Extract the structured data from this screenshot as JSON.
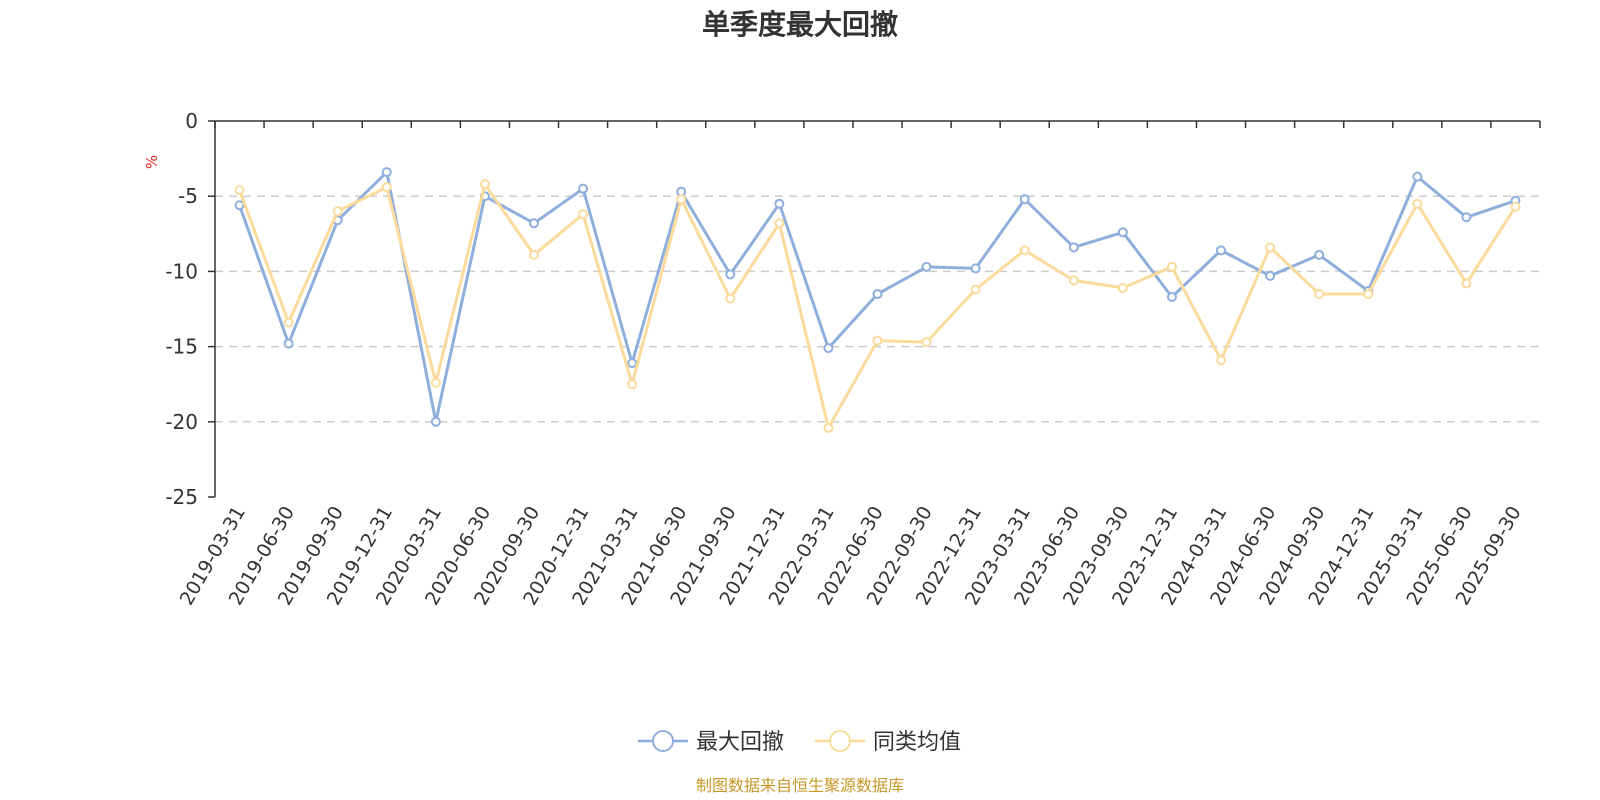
{
  "chart_data": {
    "type": "line",
    "title": "单季度最大回撤",
    "unit_label": "%",
    "ylim": [
      -25,
      0
    ],
    "yticks": [
      0,
      -5,
      -10,
      -15,
      -20,
      -25
    ],
    "grid": true,
    "legend_position": "bottom-center",
    "categories": [
      "2019-03-31",
      "2019-06-30",
      "2019-09-30",
      "2019-12-31",
      "2020-03-31",
      "2020-06-30",
      "2020-09-30",
      "2020-12-31",
      "2021-03-31",
      "2021-06-30",
      "2021-09-30",
      "2021-12-31",
      "2022-03-31",
      "2022-06-30",
      "2022-09-30",
      "2022-12-31",
      "2023-03-31",
      "2023-06-30",
      "2023-09-30",
      "2023-12-31",
      "2024-03-31",
      "2024-06-30",
      "2024-09-30",
      "2024-12-31",
      "2025-03-31",
      "2025-06-30",
      "2025-09-30"
    ],
    "series": [
      {
        "name": "最大回撤",
        "color": "#8eaedb",
        "values": [
          -5.6,
          -14.8,
          -6.6,
          -3.4,
          -20.0,
          -5.0,
          -6.8,
          -4.5,
          -16.1,
          -4.7,
          -10.2,
          -5.5,
          -15.1,
          -11.5,
          -9.7,
          -9.8,
          -5.2,
          -8.4,
          -7.4,
          -11.7,
          -8.6,
          -10.3,
          -8.9,
          -11.3,
          -3.7,
          -6.4,
          -5.3
        ]
      },
      {
        "name": "同类均值",
        "color": "#fbdb9c",
        "values": [
          -4.6,
          -13.4,
          -6.0,
          -4.4,
          -17.4,
          -4.2,
          -8.9,
          -6.2,
          -17.5,
          -5.2,
          -11.8,
          -6.8,
          -20.4,
          -14.6,
          -14.7,
          -11.2,
          -8.6,
          -10.6,
          -11.1,
          -9.7,
          -15.9,
          -8.4,
          -11.5,
          -11.5,
          -5.5,
          -10.8,
          -5.7
        ]
      }
    ]
  },
  "footer": {
    "source_text": "制图数据来自恒生聚源数据库"
  }
}
